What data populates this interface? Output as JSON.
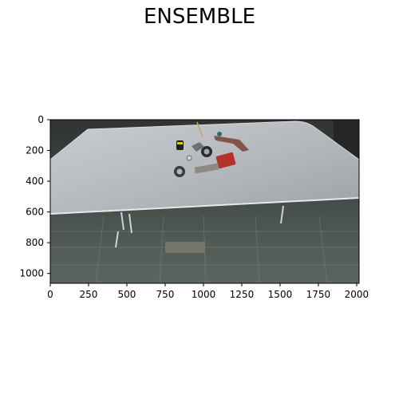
{
  "title": "ENSEMBLE",
  "plot": {
    "image_description": "Overhead camera view of a white table with scattered tools (tape measure, pipe fittings, red tool case, clamps) on a concrete floor",
    "x_ticks": [
      {
        "value": 0,
        "label": "0"
      },
      {
        "value": 250,
        "label": "250"
      },
      {
        "value": 500,
        "label": "500"
      },
      {
        "value": 750,
        "label": "750"
      },
      {
        "value": 1000,
        "label": "1000"
      },
      {
        "value": 1250,
        "label": "1250"
      },
      {
        "value": 1500,
        "label": "1500"
      },
      {
        "value": 1750,
        "label": "1750"
      },
      {
        "value": 2000,
        "label": "2000"
      }
    ],
    "y_ticks": [
      {
        "value": 0,
        "label": "0"
      },
      {
        "value": 200,
        "label": "200"
      },
      {
        "value": 400,
        "label": "400"
      },
      {
        "value": 600,
        "label": "600"
      },
      {
        "value": 800,
        "label": "800"
      },
      {
        "value": 1000,
        "label": "1000"
      }
    ],
    "x_range": [
      0,
      2016
    ],
    "y_range": [
      0,
      1064
    ]
  }
}
